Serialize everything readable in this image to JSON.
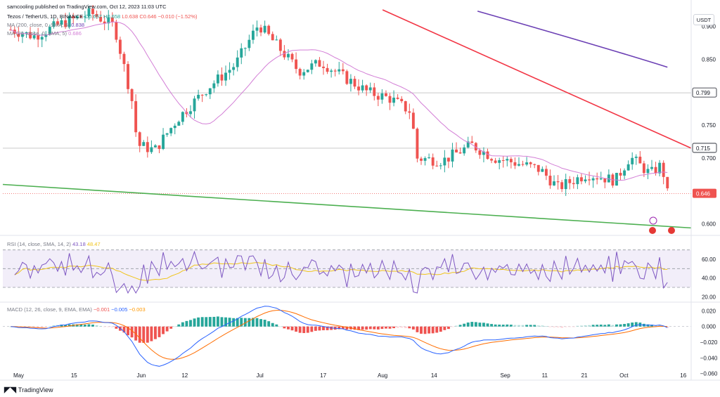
{
  "header": {
    "published_by": "samcooling published on TradingView.com, Oct 12, 2023 11:03 UTC",
    "symbol_line": "Tezos / TetherUS, 1D, BINANCE",
    "ohlc": {
      "o": "O0.657",
      "h": "H0.658",
      "l": "L0.638",
      "c": "C0.646",
      "chg": "−0.010 (−1.52%)"
    },
    "ma200": "MA (200, close, 0, SMA, 5)",
    "ma200_value": "0.838",
    "ma20": "MA (20, close, 0, SMA, 5)",
    "ma20_value": "0.686"
  },
  "currency_button": "USDT",
  "price_axis": {
    "ticks": [
      "0.900",
      "0.850",
      "0.750",
      "0.700",
      "0.645",
      "0.600"
    ],
    "tick_values": [
      0.9,
      0.85,
      0.75,
      0.7,
      0.645,
      0.6
    ],
    "level_labels": [
      {
        "text": "0.799",
        "value": 0.799
      },
      {
        "text": "0.715",
        "value": 0.715
      }
    ],
    "last_price_label": "0.646",
    "last_price": 0.646,
    "range": [
      0.588,
      0.925
    ]
  },
  "time_axis": [
    "May",
    "15",
    "Jun",
    "12",
    "Jul",
    "17",
    "Aug",
    "14",
    "Sep",
    "11",
    "21",
    "Oct",
    "16"
  ],
  "rsi": {
    "legend": "RSI (14, close, SMA, 14, 2)",
    "value": "43.18",
    "ma_value": "48.47",
    "ticks": [
      "60.00",
      "40.00",
      "20.00"
    ],
    "tick_values": [
      60,
      40,
      20
    ],
    "bands": [
      70,
      50,
      30
    ],
    "range": [
      18,
      78
    ]
  },
  "macd": {
    "legend": "MACD (12, 26, close, 9, EMA, EMA)",
    "hist_value": "−0.001",
    "macd_value": "−0.005",
    "signal_value": "−0.003",
    "ticks": [
      "0.020",
      "0.000",
      "−0.020",
      "−0.040",
      "−0.060"
    ],
    "tick_values": [
      0.02,
      0,
      -0.02,
      -0.04,
      -0.06
    ],
    "range": [
      -0.064,
      0.024
    ]
  },
  "colors": {
    "up": "#26a69a",
    "down": "#ef5350",
    "ma200": "#6b3fb4",
    "ma20": "#d37fd6",
    "resistance": "#f23645",
    "support": "#4caf50",
    "rsi_line": "#7e57c2",
    "rsi_ma": "#f0c419",
    "macd_line": "#2962ff",
    "signal_line": "#ff6d00"
  },
  "branding": "TradingView",
  "chart_data": {
    "type": "candlestick",
    "title": "Tezos / TetherUS, 1D, BINANCE",
    "period": "2023-05-01 to 2023-10-12",
    "series": [
      {
        "name": "MA (200, close, 0, SMA, 5)",
        "from": "2023-08-25",
        "from_value": 0.923,
        "to": "2023-10-12",
        "to_value": 0.838
      },
      {
        "name": "MA (20, close, 0, SMA, 5)",
        "last_value": 0.686
      }
    ],
    "annotations": [
      {
        "type": "horizontal_line",
        "value": 0.799
      },
      {
        "type": "horizontal_line",
        "value": 0.715
      },
      {
        "type": "trendline",
        "color": "red",
        "from": [
          "2023-08-01",
          0.925
        ],
        "to": [
          "2023-10-18",
          0.715
        ]
      },
      {
        "type": "trendline",
        "color": "green",
        "from": [
          "2023-04-27",
          0.66
        ],
        "to": [
          "2023-10-18",
          0.594
        ]
      }
    ],
    "last_close": 0.646,
    "rsi_last": 43.18,
    "macd_last": {
      "hist": -0.001,
      "macd": -0.005,
      "signal": -0.003
    }
  }
}
